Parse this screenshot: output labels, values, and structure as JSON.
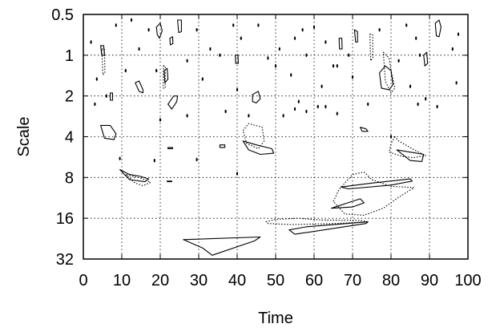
{
  "chart_data": {
    "type": "contour",
    "xlabel": "Time",
    "ylabel": "Scale",
    "xlim": [
      0,
      100
    ],
    "ylim": [
      0.5,
      32
    ],
    "y_scale": "log2-inverted",
    "grid": true,
    "x_ticks": [
      0,
      10,
      20,
      30,
      40,
      50,
      60,
      70,
      80,
      90,
      100
    ],
    "x_tick_labels": [
      "0",
      "10",
      "20",
      "30",
      "40",
      "50",
      "60",
      "70",
      "80",
      "90",
      "100"
    ],
    "y_ticks": [
      0.5,
      1,
      2,
      4,
      8,
      16,
      32
    ],
    "y_tick_labels": [
      "0.5",
      "1",
      "2",
      "4",
      "8",
      "16",
      "32"
    ],
    "contours": [
      {
        "style": "solid",
        "points": [
          [
            26,
            23
          ],
          [
            31,
            26.5
          ],
          [
            33.5,
            30
          ],
          [
            44.5,
            23.5
          ],
          [
            46,
            22
          ],
          [
            26,
            23
          ]
        ]
      },
      {
        "style": "solid",
        "points": [
          [
            53.5,
            19.5
          ],
          [
            58,
            18.5
          ],
          [
            74,
            17
          ],
          [
            73.5,
            17.5
          ],
          [
            55,
            21
          ],
          [
            53.5,
            19.5
          ]
        ]
      },
      {
        "style": "solid",
        "points": [
          [
            64.5,
            13.5
          ],
          [
            68,
            12.5
          ],
          [
            72,
            11.5
          ],
          [
            73,
            12.3
          ],
          [
            70,
            13.2
          ],
          [
            64.5,
            13.5
          ]
        ]
      },
      {
        "style": "solid",
        "points": [
          [
            67,
            9.4
          ],
          [
            75,
            8.8
          ],
          [
            85,
            8.2
          ],
          [
            85.5,
            8.5
          ],
          [
            80,
            9.1
          ],
          [
            69,
            9.7
          ],
          [
            67,
            9.4
          ]
        ]
      },
      {
        "style": "solid",
        "points": [
          [
            9.5,
            7
          ],
          [
            12,
            7.6
          ],
          [
            14.5,
            7.8
          ],
          [
            17,
            8.2
          ],
          [
            16,
            8.6
          ],
          [
            12,
            8.3
          ],
          [
            9.5,
            7
          ]
        ]
      },
      {
        "style": "dashed",
        "points": [
          [
            11,
            7.6
          ],
          [
            13.5,
            8.8
          ],
          [
            15.5,
            9.2
          ],
          [
            17.5,
            8.7
          ],
          [
            15,
            8.1
          ],
          [
            11,
            7.6
          ]
        ]
      },
      {
        "style": "dashed",
        "points": [
          [
            65,
            12
          ],
          [
            66.5,
            9.8
          ],
          [
            70,
            7.6
          ],
          [
            73,
            7.3
          ],
          [
            75,
            8.3
          ],
          [
            80,
            9.3
          ],
          [
            86,
            9.5
          ],
          [
            82,
            11.2
          ],
          [
            78,
            13.5
          ],
          [
            73,
            15.2
          ],
          [
            68,
            14.9
          ],
          [
            65,
            12
          ]
        ]
      },
      {
        "style": "dashed",
        "points": [
          [
            47.5,
            17
          ],
          [
            50,
            16.3
          ],
          [
            56,
            16
          ],
          [
            62,
            16.5
          ],
          [
            72,
            16.6
          ],
          [
            74,
            17
          ],
          [
            66,
            17.5
          ],
          [
            54,
            17.8
          ],
          [
            48,
            17.5
          ],
          [
            47.5,
            17
          ]
        ]
      },
      {
        "style": "solid",
        "points": [
          [
            41.5,
            4.3
          ],
          [
            45,
            4.6
          ],
          [
            49,
            4.9
          ],
          [
            49.5,
            5.3
          ],
          [
            46,
            5.4
          ],
          [
            43,
            5.0
          ],
          [
            41.5,
            4.3
          ]
        ]
      },
      {
        "style": "dashed",
        "points": [
          [
            41.5,
            3.6
          ],
          [
            43,
            3.2
          ],
          [
            46.5,
            3.4
          ],
          [
            47,
            4.3
          ],
          [
            45.5,
            4.9
          ],
          [
            42.5,
            4.5
          ],
          [
            41.5,
            3.6
          ]
        ]
      },
      {
        "style": "solid",
        "points": [
          [
            81.5,
            5.0
          ],
          [
            85,
            5.2
          ],
          [
            88.5,
            5.4
          ],
          [
            88,
            6.1
          ],
          [
            85,
            6.0
          ],
          [
            81.5,
            5.0
          ]
        ]
      },
      {
        "style": "dashed",
        "points": [
          [
            81,
            4.0
          ],
          [
            80,
            4.5
          ],
          [
            79.5,
            5.2
          ],
          [
            83,
            5.6
          ],
          [
            86,
            5.7
          ],
          [
            89,
            5.5
          ],
          [
            86,
            5.0
          ],
          [
            82,
            4.3
          ],
          [
            81,
            4.0
          ]
        ]
      },
      {
        "style": "solid",
        "points": [
          [
            4.5,
            3.3
          ],
          [
            7,
            3.3
          ],
          [
            8.5,
            3.8
          ],
          [
            8,
            4.2
          ],
          [
            5.5,
            4.1
          ],
          [
            4.5,
            3.3
          ]
        ]
      },
      {
        "style": "solid",
        "points": [
          [
            77,
            1.35
          ],
          [
            78.5,
            1.2
          ],
          [
            80,
            1.3
          ],
          [
            80.5,
            1.65
          ],
          [
            79.5,
            1.8
          ],
          [
            77.5,
            1.75
          ],
          [
            77,
            1.35
          ]
        ]
      },
      {
        "style": "dashed",
        "points": [
          [
            78,
            0.95
          ],
          [
            79.5,
            1.05
          ],
          [
            80,
            1.3
          ],
          [
            81,
            1.75
          ],
          [
            80,
            1.9
          ],
          [
            78.5,
            1.55
          ],
          [
            78,
            0.95
          ]
        ]
      },
      {
        "style": "solid",
        "points": [
          [
            22,
            2.3
          ],
          [
            23.5,
            2.0
          ],
          [
            24.5,
            2.0
          ],
          [
            24.3,
            2.2
          ],
          [
            23,
            2.5
          ],
          [
            22,
            2.3
          ]
        ]
      },
      {
        "style": "solid",
        "points": [
          [
            13.5,
            1.6
          ],
          [
            14.5,
            1.55
          ],
          [
            15.5,
            1.8
          ],
          [
            15.5,
            1.9
          ],
          [
            14.5,
            1.85
          ],
          [
            13.5,
            1.6
          ]
        ]
      },
      {
        "style": "solid",
        "points": [
          [
            19,
            0.62
          ],
          [
            20,
            0.58
          ],
          [
            20.5,
            0.66
          ],
          [
            19.8,
            0.75
          ],
          [
            19.2,
            0.7
          ],
          [
            19,
            0.62
          ]
        ]
      },
      {
        "style": "solid",
        "points": [
          [
            24.5,
            0.55
          ],
          [
            25.5,
            0.55
          ],
          [
            25.5,
            0.67
          ],
          [
            24.8,
            0.68
          ],
          [
            24.5,
            0.55
          ]
        ]
      },
      {
        "style": "solid",
        "points": [
          [
            91.5,
            0.58
          ],
          [
            92.5,
            0.55
          ],
          [
            93,
            0.62
          ],
          [
            92.5,
            0.73
          ],
          [
            91.8,
            0.72
          ],
          [
            91.5,
            0.58
          ]
        ]
      },
      {
        "style": "solid",
        "points": [
          [
            70.5,
            0.65
          ],
          [
            71.3,
            0.67
          ],
          [
            71.3,
            0.8
          ],
          [
            70.8,
            0.8
          ],
          [
            70.5,
            0.65
          ]
        ]
      },
      {
        "style": "solid",
        "points": [
          [
            44,
            1.95
          ],
          [
            45.5,
            1.85
          ],
          [
            46,
            2.1
          ],
          [
            45,
            2.25
          ],
          [
            44,
            2.2
          ],
          [
            44,
            1.95
          ]
        ]
      },
      {
        "style": "solid",
        "points": [
          [
            72,
            3.4
          ],
          [
            73.5,
            3.5
          ],
          [
            74,
            3.65
          ],
          [
            72.5,
            3.65
          ],
          [
            72,
            3.4
          ]
        ]
      },
      {
        "style": "solid",
        "points": [
          [
            4.5,
            0.85
          ],
          [
            5.3,
            0.85
          ],
          [
            5.5,
            1.0
          ],
          [
            4.8,
            1.0
          ],
          [
            4.5,
            0.85
          ]
        ]
      },
      {
        "style": "solid",
        "points": [
          [
            21,
            1.3
          ],
          [
            21.8,
            1.25
          ],
          [
            22,
            1.5
          ],
          [
            21.2,
            1.6
          ],
          [
            21,
            1.3
          ]
        ]
      },
      {
        "style": "solid",
        "points": [
          [
            88.5,
            1.0
          ],
          [
            89.3,
            0.95
          ],
          [
            89.5,
            1.15
          ],
          [
            88.8,
            1.2
          ],
          [
            88.5,
            1.0
          ]
        ]
      },
      {
        "style": "solid",
        "points": [
          [
            39.5,
            1.0
          ],
          [
            40.2,
            1.0
          ],
          [
            40.3,
            1.15
          ],
          [
            39.6,
            1.15
          ],
          [
            39.5,
            1.0
          ]
        ]
      },
      {
        "style": "solid",
        "points": [
          [
            22.5,
            0.75
          ],
          [
            23.2,
            0.73
          ],
          [
            23.3,
            0.82
          ],
          [
            22.6,
            0.84
          ],
          [
            22.5,
            0.75
          ]
        ]
      },
      {
        "style": "solid",
        "points": [
          [
            7,
            1.9
          ],
          [
            7.6,
            1.9
          ],
          [
            7.6,
            2.15
          ],
          [
            7,
            2.15
          ],
          [
            7,
            1.9
          ]
        ]
      },
      {
        "style": "solid",
        "points": [
          [
            66.5,
            0.75
          ],
          [
            67.2,
            0.75
          ],
          [
            67.3,
            0.9
          ],
          [
            66.6,
            0.9
          ],
          [
            66.5,
            0.75
          ]
        ]
      },
      {
        "style": "solid",
        "points": [
          [
            35.5,
            4.6
          ],
          [
            36.8,
            4.6
          ],
          [
            36.8,
            4.8
          ],
          [
            35.5,
            4.8
          ],
          [
            35.5,
            4.6
          ]
        ]
      },
      {
        "style": "solid",
        "points": [
          [
            22,
            4.8
          ],
          [
            23.2,
            4.8
          ],
          [
            23.2,
            4.9
          ],
          [
            22,
            4.9
          ],
          [
            22,
            4.8
          ]
        ]
      },
      {
        "style": "solid",
        "points": [
          [
            21.8,
            8.5
          ],
          [
            23,
            8.5
          ],
          [
            23,
            8.6
          ],
          [
            21.8,
            8.6
          ],
          [
            21.8,
            8.5
          ]
        ]
      },
      {
        "style": "dashed",
        "points": [
          [
            20.8,
            1.2
          ],
          [
            21.3,
            1.2
          ],
          [
            21.3,
            1.75
          ],
          [
            20.8,
            1.75
          ],
          [
            20.8,
            1.2
          ]
        ]
      },
      {
        "style": "dashed",
        "points": [
          [
            4.8,
            0.9
          ],
          [
            5.5,
            0.9
          ],
          [
            5.6,
            1.35
          ],
          [
            5.1,
            1.4
          ],
          [
            4.8,
            0.9
          ]
        ]
      },
      {
        "style": "dashed",
        "points": [
          [
            74.5,
            0.7
          ],
          [
            75.2,
            0.7
          ],
          [
            75.3,
            1.05
          ],
          [
            74.7,
            1.1
          ],
          [
            74.5,
            0.7
          ]
        ]
      }
    ],
    "dots": [
      [
        2,
        0.8
      ],
      [
        8.5,
        0.6
      ],
      [
        12.5,
        0.55
      ],
      [
        14.5,
        0.9
      ],
      [
        17,
        0.65
      ],
      [
        29.5,
        0.65
      ],
      [
        33,
        0.9
      ],
      [
        35.5,
        1.0
      ],
      [
        39,
        0.6
      ],
      [
        41,
        0.75
      ],
      [
        45.5,
        0.6
      ],
      [
        48,
        1.05
      ],
      [
        51,
        0.9
      ],
      [
        55,
        0.75
      ],
      [
        57,
        0.65
      ],
      [
        58,
        1.0
      ],
      [
        60,
        0.62
      ],
      [
        63,
        0.8
      ],
      [
        66,
        1.2
      ],
      [
        69,
        1.0
      ],
      [
        77,
        0.65
      ],
      [
        84,
        0.6
      ],
      [
        86.5,
        0.75
      ],
      [
        87.5,
        1.0
      ],
      [
        96,
        0.9
      ],
      [
        97.5,
        0.7
      ],
      [
        3.5,
        1.5
      ],
      [
        6,
        2.0
      ],
      [
        11,
        1.3
      ],
      [
        19,
        1.3
      ],
      [
        27,
        1.1
      ],
      [
        31,
        1.5
      ],
      [
        40,
        1.8
      ],
      [
        50,
        1.2
      ],
      [
        54,
        1.4
      ],
      [
        56,
        2.2
      ],
      [
        62,
        1.7
      ],
      [
        65,
        1.2
      ],
      [
        70,
        1.45
      ],
      [
        74,
        2.3
      ],
      [
        82,
        1.1
      ],
      [
        85,
        1.7
      ],
      [
        89,
        2.1
      ],
      [
        92,
        2.4
      ],
      [
        97,
        1.6
      ],
      [
        3,
        2.3
      ],
      [
        20,
        3.0
      ],
      [
        27,
        2.8
      ],
      [
        37,
        2.6
      ],
      [
        43,
        2.8
      ],
      [
        52,
        2.8
      ],
      [
        55,
        2.5
      ],
      [
        58,
        2.6
      ],
      [
        63,
        2.4
      ],
      [
        66,
        2.7
      ],
      [
        87,
        2.3
      ],
      [
        9.5,
        5.8
      ],
      [
        18.5,
        6.0
      ],
      [
        29.5,
        5.9
      ],
      [
        40,
        7.5
      ],
      [
        61,
        2.4
      ],
      [
        80,
        4.0
      ]
    ]
  }
}
